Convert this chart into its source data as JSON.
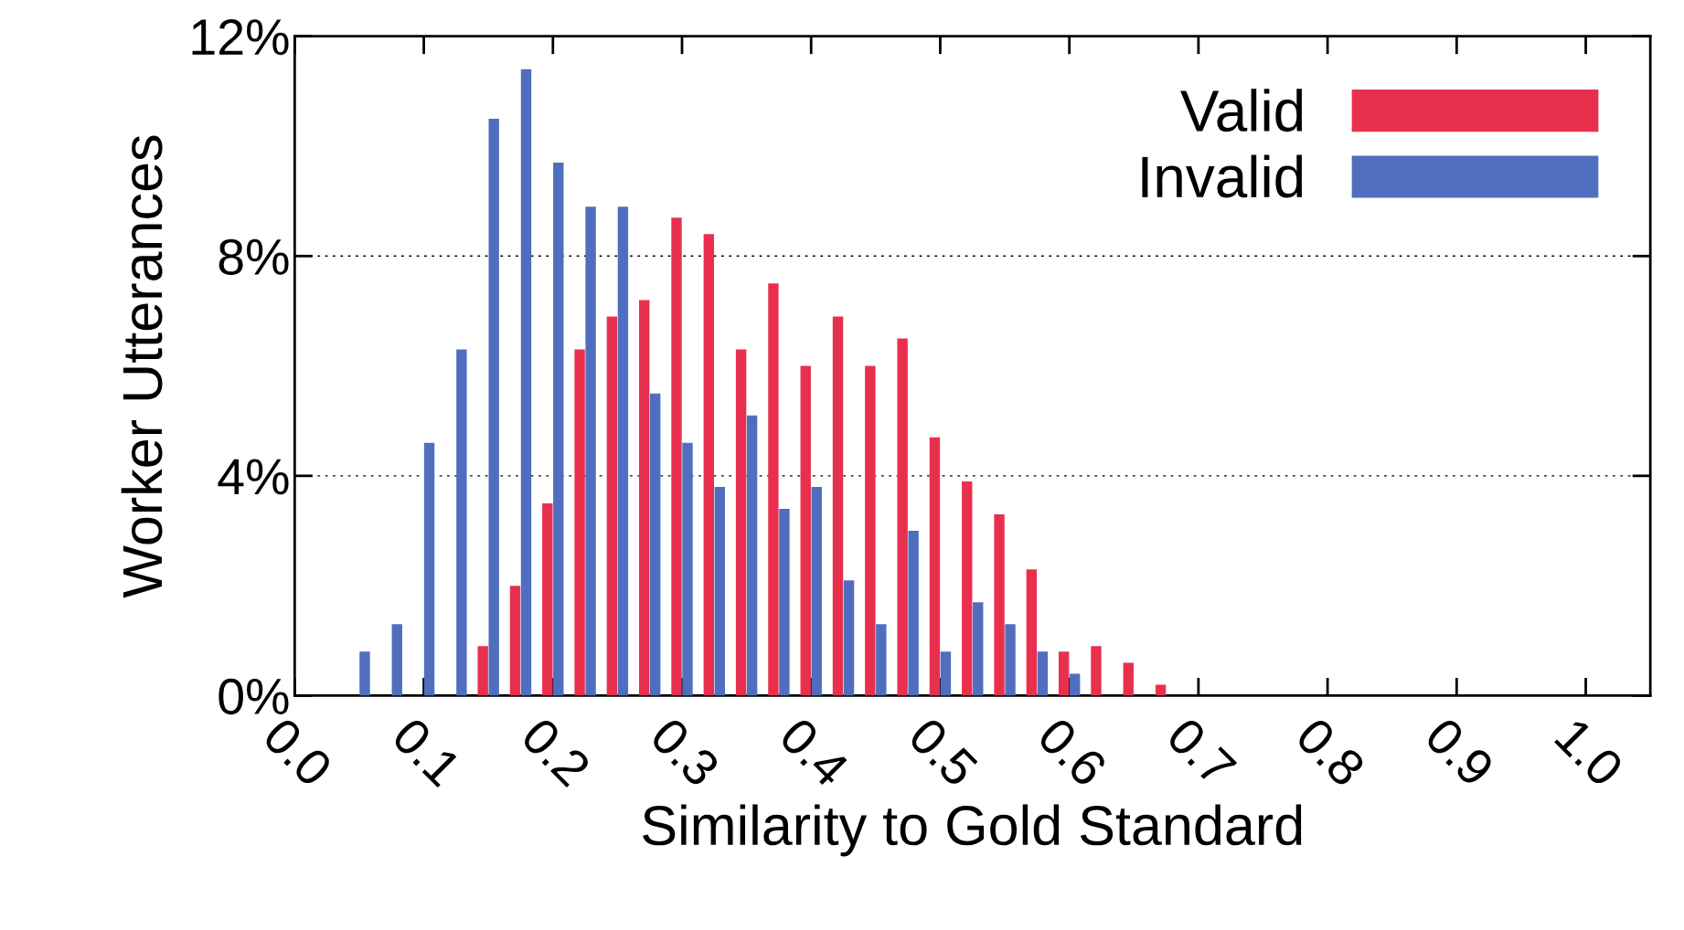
{
  "chart_data": {
    "type": "bar",
    "xlabel": "Similarity to Gold Standard",
    "ylabel": "Worker Utterances",
    "xlim": [
      0,
      1.05
    ],
    "xticks": [
      {
        "value": 0,
        "label": "0.0"
      },
      0.1,
      0.2,
      0.3,
      0.4,
      0.5,
      0.6,
      0.7,
      0.8,
      0.9,
      {
        "value": 1.0,
        "label": "1.0"
      }
    ],
    "ylim": [
      0,
      12
    ],
    "yticks": [
      {
        "value": 0,
        "label": "0%"
      },
      {
        "value": 4,
        "label": "4%"
      },
      {
        "value": 8,
        "label": "8%"
      },
      {
        "value": 12,
        "label": "12%"
      }
    ],
    "grid": "y",
    "legend": "top right",
    "series": [
      {
        "name": "Valid",
        "color": "#e8304e",
        "x": [
          0.15,
          0.175,
          0.2,
          0.225,
          0.25,
          0.275,
          0.3,
          0.325,
          0.35,
          0.375,
          0.4,
          0.425,
          0.45,
          0.475,
          0.5,
          0.525,
          0.55,
          0.575,
          0.6,
          0.625,
          0.65,
          0.675
        ],
        "values": [
          0.9,
          2.0,
          3.5,
          6.3,
          6.9,
          7.2,
          8.7,
          8.4,
          6.3,
          7.5,
          6.0,
          6.9,
          6.0,
          6.5,
          4.7,
          3.9,
          3.3,
          2.3,
          0.8,
          0.9,
          0.6,
          0.2
        ]
      },
      {
        "name": "Invalid",
        "color": "#4f6fbe",
        "x": [
          0.05,
          0.075,
          0.1,
          0.125,
          0.15,
          0.175,
          0.2,
          0.225,
          0.25,
          0.275,
          0.3,
          0.325,
          0.35,
          0.375,
          0.4,
          0.425,
          0.45,
          0.475,
          0.5,
          0.525,
          0.55,
          0.575,
          0.6
        ],
        "values": [
          0.8,
          1.3,
          4.6,
          6.3,
          10.5,
          11.4,
          9.7,
          8.9,
          8.9,
          5.5,
          4.6,
          3.8,
          5.1,
          3.4,
          3.8,
          2.1,
          1.3,
          3.0,
          0.8,
          1.7,
          1.3,
          0.8,
          0.4
        ]
      }
    ]
  }
}
